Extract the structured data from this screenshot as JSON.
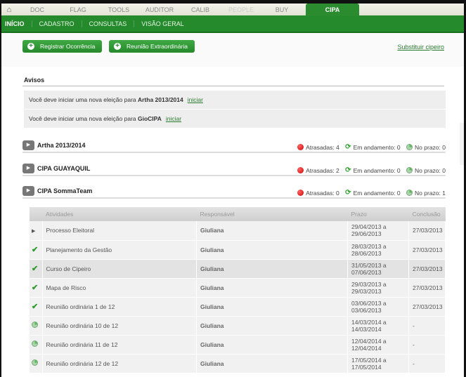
{
  "tabs": {
    "items": [
      "DOC",
      "FLAG",
      "TOOLS",
      "AUDITOR",
      "CALIB",
      "PEOPLE",
      "BUY"
    ],
    "active": "CIPA"
  },
  "subnav": [
    "INÍCIO",
    "CADASTRO",
    "CONSULTAS",
    "VISÃO GERAL"
  ],
  "actions": {
    "registrar": "Registrar Ocorrência",
    "reuniao": "Reunião Extraordinária",
    "substituir": "Substituir cipeiro"
  },
  "avisos": {
    "title": "Avisos",
    "items": [
      {
        "text": "Você deve iniciar uma nova eleição para ",
        "name": "Artha 2013/2014",
        "link": "iniciar"
      },
      {
        "text": "Você deve iniciar uma nova eleição para ",
        "name": "GioCIPA",
        "link": "iniciar"
      }
    ]
  },
  "groups": [
    {
      "name": "Artha 2013/2014",
      "atrasadas": "Atrasadas: 4",
      "andamento": "Em andamento: 0",
      "prazo": "No prazo: 0"
    },
    {
      "name": "CIPA GUAYAQUIL",
      "atrasadas": "Atrasadas: 2",
      "andamento": "Em andamento: 0",
      "prazo": "No prazo: 0"
    },
    {
      "name": "CIPA SommaTeam",
      "atrasadas": "Atrasadas: 0",
      "andamento": "Em andamento: 0",
      "prazo": "No prazo: 1"
    }
  ],
  "table": {
    "headers": [
      "Atividades",
      "Responsável",
      "Prazo",
      "Conclusão"
    ],
    "rows": [
      {
        "icon": "arrow",
        "atividade": "Processo Eleitoral",
        "resp": "Giuliana",
        "prazo1": "29/04/2013 a",
        "prazo2": "29/06/2013",
        "conclusao": "27/03/2013"
      },
      {
        "icon": "check",
        "atividade": "Planejamento da Gestão",
        "resp": "Giuliana",
        "prazo1": "28/03/2013 a",
        "prazo2": "28/06/2013",
        "conclusao": "27/03/2013"
      },
      {
        "icon": "check",
        "atividade": "Curso de Cipeiro",
        "resp": "Giuliana",
        "prazo1": "31/05/2013 a",
        "prazo2": "07/06/2013",
        "conclusao": "27/03/2013"
      },
      {
        "icon": "check",
        "atividade": "Mapa de Risco",
        "resp": "Giuliana",
        "prazo1": "29/03/2013 a",
        "prazo2": "29/03/2013",
        "conclusao": "27/03/2013"
      },
      {
        "icon": "check",
        "atividade": "Reunião ordinária 1 de 12",
        "resp": "Giuliana",
        "prazo1": "03/06/2013 a",
        "prazo2": "03/06/2013",
        "conclusao": "27/03/2013"
      },
      {
        "icon": "pie",
        "atividade": "Reunião ordinária 10 de 12",
        "resp": "Giuliana",
        "prazo1": "14/03/2014 a",
        "prazo2": "14/03/2014",
        "conclusao": "-"
      },
      {
        "icon": "pie",
        "atividade": "Reunião ordinária 11 de 12",
        "resp": "Giuliana",
        "prazo1": "12/04/2014 a",
        "prazo2": "12/04/2014",
        "conclusao": "-"
      },
      {
        "icon": "pie",
        "atividade": "Reunião ordinária 12 de 12",
        "resp": "Giuliana",
        "prazo1": "17/05/2014 a",
        "prazo2": "17/05/2014",
        "conclusao": "-"
      }
    ]
  }
}
